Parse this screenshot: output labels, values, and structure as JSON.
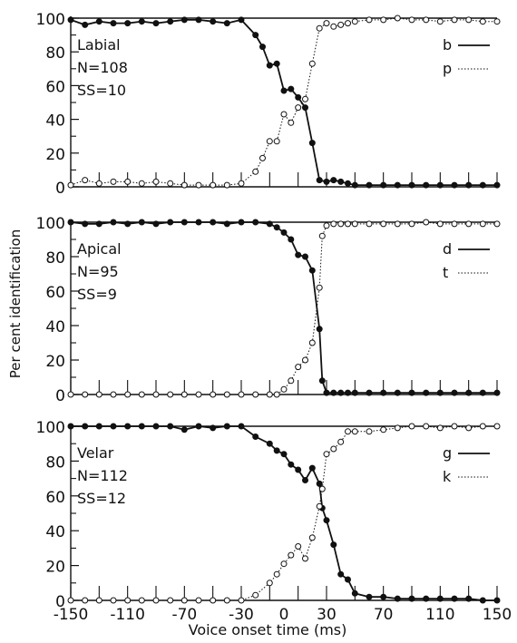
{
  "figure": {
    "ylabel": "Per cent identification",
    "xlabel": "Voice onset time (ms)",
    "ink_color": "#111111"
  },
  "chart_data": [
    {
      "type": "line",
      "panel_label": "Labial",
      "info": [
        "Labial",
        "N=108",
        "SS=10"
      ],
      "x": [
        -150,
        -140,
        -130,
        -120,
        -110,
        -100,
        -90,
        -80,
        -70,
        -60,
        -50,
        -40,
        -30,
        -20,
        -15,
        -10,
        -5,
        0,
        5,
        10,
        15,
        20,
        25,
        30,
        35,
        40,
        45,
        50,
        60,
        70,
        80,
        90,
        100,
        110,
        120,
        130,
        140,
        150
      ],
      "ylim": [
        0,
        100
      ],
      "xlim": [
        -150,
        150
      ],
      "yticks": [
        0,
        20,
        40,
        60,
        80,
        100
      ],
      "series": [
        {
          "name": "b",
          "style": "solid",
          "marker": "filled",
          "values": [
            99,
            96,
            98,
            97,
            97,
            98,
            97,
            98,
            99,
            99,
            98,
            97,
            99,
            90,
            83,
            72,
            73,
            57,
            58,
            53,
            47,
            26,
            4,
            3,
            4,
            3,
            2,
            1,
            1,
            1,
            1,
            1,
            1,
            1,
            1,
            1,
            1,
            1
          ]
        },
        {
          "name": "p",
          "style": "dotted",
          "marker": "open",
          "values": [
            1,
            4,
            2,
            3,
            3,
            2,
            3,
            2,
            1,
            1,
            1,
            1,
            2,
            9,
            17,
            27,
            27,
            43,
            38,
            47,
            52,
            73,
            94,
            97,
            95,
            96,
            97,
            98,
            99,
            99,
            100,
            99,
            99,
            98,
            99,
            99,
            98,
            98
          ]
        }
      ]
    },
    {
      "type": "line",
      "panel_label": "Apical",
      "info": [
        "Apical",
        "N=95",
        "SS=9"
      ],
      "x": [
        -150,
        -140,
        -130,
        -120,
        -110,
        -100,
        -90,
        -80,
        -70,
        -60,
        -50,
        -40,
        -30,
        -20,
        -10,
        -5,
        0,
        5,
        10,
        15,
        20,
        25,
        27,
        30,
        35,
        40,
        45,
        50,
        60,
        70,
        80,
        90,
        100,
        110,
        120,
        130,
        140,
        150
      ],
      "ylim": [
        0,
        100
      ],
      "xlim": [
        -150,
        150
      ],
      "yticks": [
        0,
        20,
        40,
        60,
        80,
        100
      ],
      "series": [
        {
          "name": "d",
          "style": "solid",
          "marker": "filled",
          "values": [
            100,
            99,
            99,
            100,
            99,
            100,
            99,
            100,
            100,
            100,
            100,
            99,
            100,
            100,
            99,
            97,
            94,
            90,
            81,
            80,
            72,
            38,
            8,
            1,
            1,
            1,
            1,
            1,
            1,
            1,
            1,
            1,
            1,
            1,
            1,
            1,
            1,
            1
          ]
        },
        {
          "name": "t",
          "style": "dotted",
          "marker": "open",
          "values": [
            0,
            0,
            0,
            0,
            0,
            0,
            0,
            0,
            0,
            0,
            0,
            0,
            0,
            0,
            0,
            0,
            3,
            8,
            16,
            20,
            30,
            62,
            92,
            98,
            99,
            99,
            99,
            99,
            99,
            99,
            99,
            99,
            100,
            99,
            99,
            99,
            99,
            99
          ]
        }
      ]
    },
    {
      "type": "line",
      "panel_label": "Velar",
      "info": [
        "Velar",
        "N=112",
        "SS=12"
      ],
      "x": [
        -150,
        -140,
        -130,
        -120,
        -110,
        -100,
        -90,
        -80,
        -70,
        -60,
        -50,
        -40,
        -30,
        -20,
        -10,
        -5,
        0,
        5,
        10,
        15,
        20,
        25,
        27,
        30,
        35,
        40,
        45,
        50,
        60,
        70,
        80,
        90,
        100,
        110,
        120,
        130,
        140,
        150
      ],
      "ylim": [
        0,
        100
      ],
      "xlim": [
        -150,
        150
      ],
      "yticks": [
        0,
        20,
        40,
        60,
        80,
        100
      ],
      "series": [
        {
          "name": "g",
          "style": "solid",
          "marker": "filled",
          "values": [
            100,
            100,
            100,
            100,
            100,
            100,
            100,
            100,
            98,
            100,
            99,
            100,
            100,
            94,
            90,
            86,
            84,
            78,
            75,
            69,
            76,
            67,
            53,
            46,
            32,
            15,
            12,
            4,
            2,
            2,
            1,
            1,
            1,
            1,
            1,
            1,
            0,
            0
          ]
        },
        {
          "name": "k",
          "style": "dotted",
          "marker": "open",
          "values": [
            0,
            0,
            0,
            0,
            0,
            0,
            0,
            0,
            0,
            0,
            0,
            0,
            0,
            3,
            10,
            15,
            21,
            26,
            31,
            24,
            36,
            54,
            64,
            84,
            87,
            91,
            97,
            97,
            97,
            98,
            99,
            100,
            100,
            99,
            100,
            99,
            100,
            100
          ]
        }
      ]
    }
  ],
  "xaxis": {
    "ticks": [
      -150,
      -130,
      -110,
      -90,
      -70,
      -50,
      -30,
      -10,
      10,
      30,
      50,
      70,
      90,
      110,
      130,
      150
    ],
    "labels": [
      -150,
      -110,
      -70,
      -30,
      0,
      30,
      70,
      110,
      150
    ]
  }
}
